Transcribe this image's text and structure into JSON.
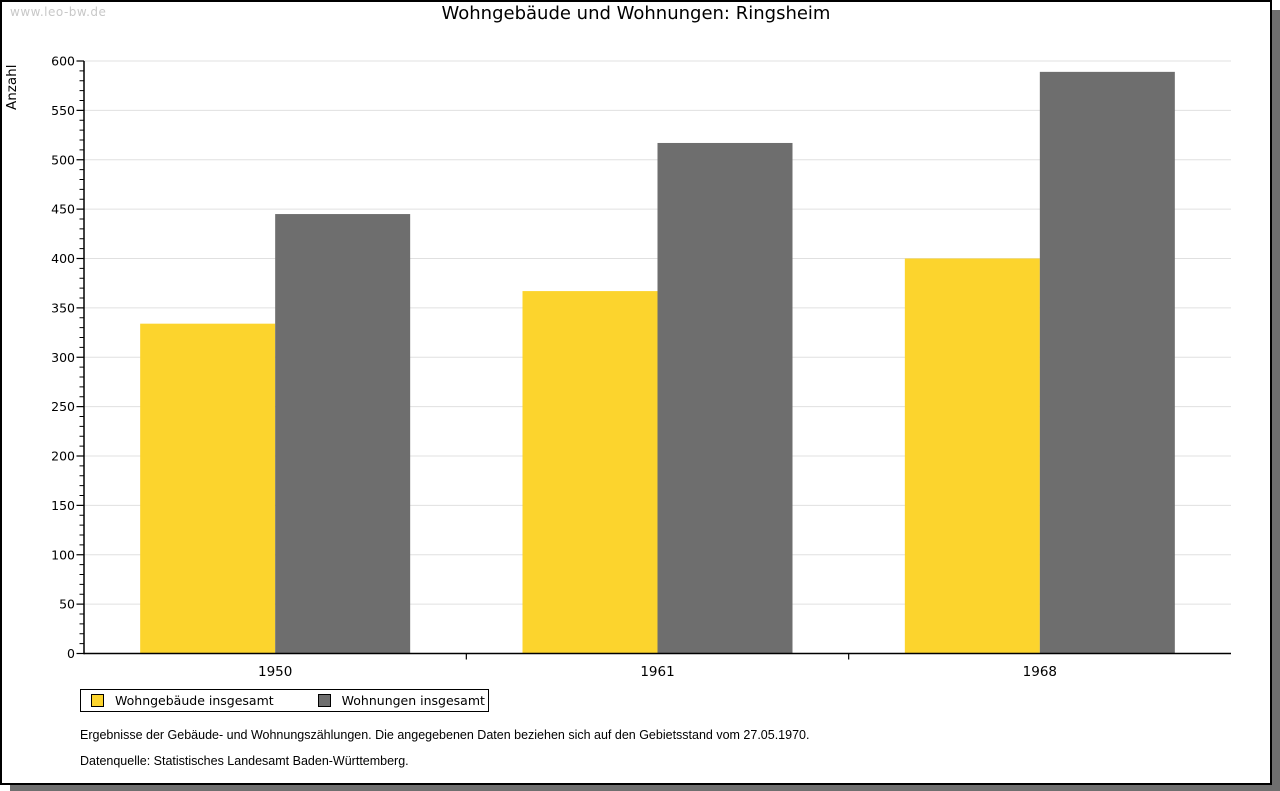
{
  "page": {
    "watermark": "www.leo-bw.de",
    "title": "Wohngebäude und Wohnungen: Ringsheim"
  },
  "colors": {
    "bar_yellow": "#FCD42D",
    "bar_gray": "#6E6E6E",
    "card_shadow": "#6F6F6F",
    "gridline": "#E0E0E0",
    "watermark_text": "#C8C8C8"
  },
  "chart_data": {
    "type": "bar",
    "title": "Wohngebäude und Wohnungen: Ringsheim",
    "categories": [
      "1950",
      "1961",
      "1968"
    ],
    "series": [
      {
        "name": "Wohngebäude insgesamt",
        "color": "#FCD42D",
        "values": [
          334,
          367,
          400
        ]
      },
      {
        "name": "Wohnungen insgesamt",
        "color": "#6E6E6E",
        "values": [
          445,
          517,
          589
        ]
      }
    ],
    "xlabel": "",
    "ylabel": "Anzahl",
    "ylim": [
      0,
      600
    ],
    "ytick_major": 50,
    "ytick_minor": 10,
    "grid": true,
    "gridline_color": "#E0E0E0",
    "legend_position": "bottom-left"
  },
  "footer": {
    "note1": "Ergebnisse der Gebäude- und Wohnungszählungen. Die angegebenen Daten beziehen sich auf den Gebietsstand vom 27.05.1970.",
    "note2": "Datenquelle: Statistisches Landesamt Baden-Württemberg."
  }
}
